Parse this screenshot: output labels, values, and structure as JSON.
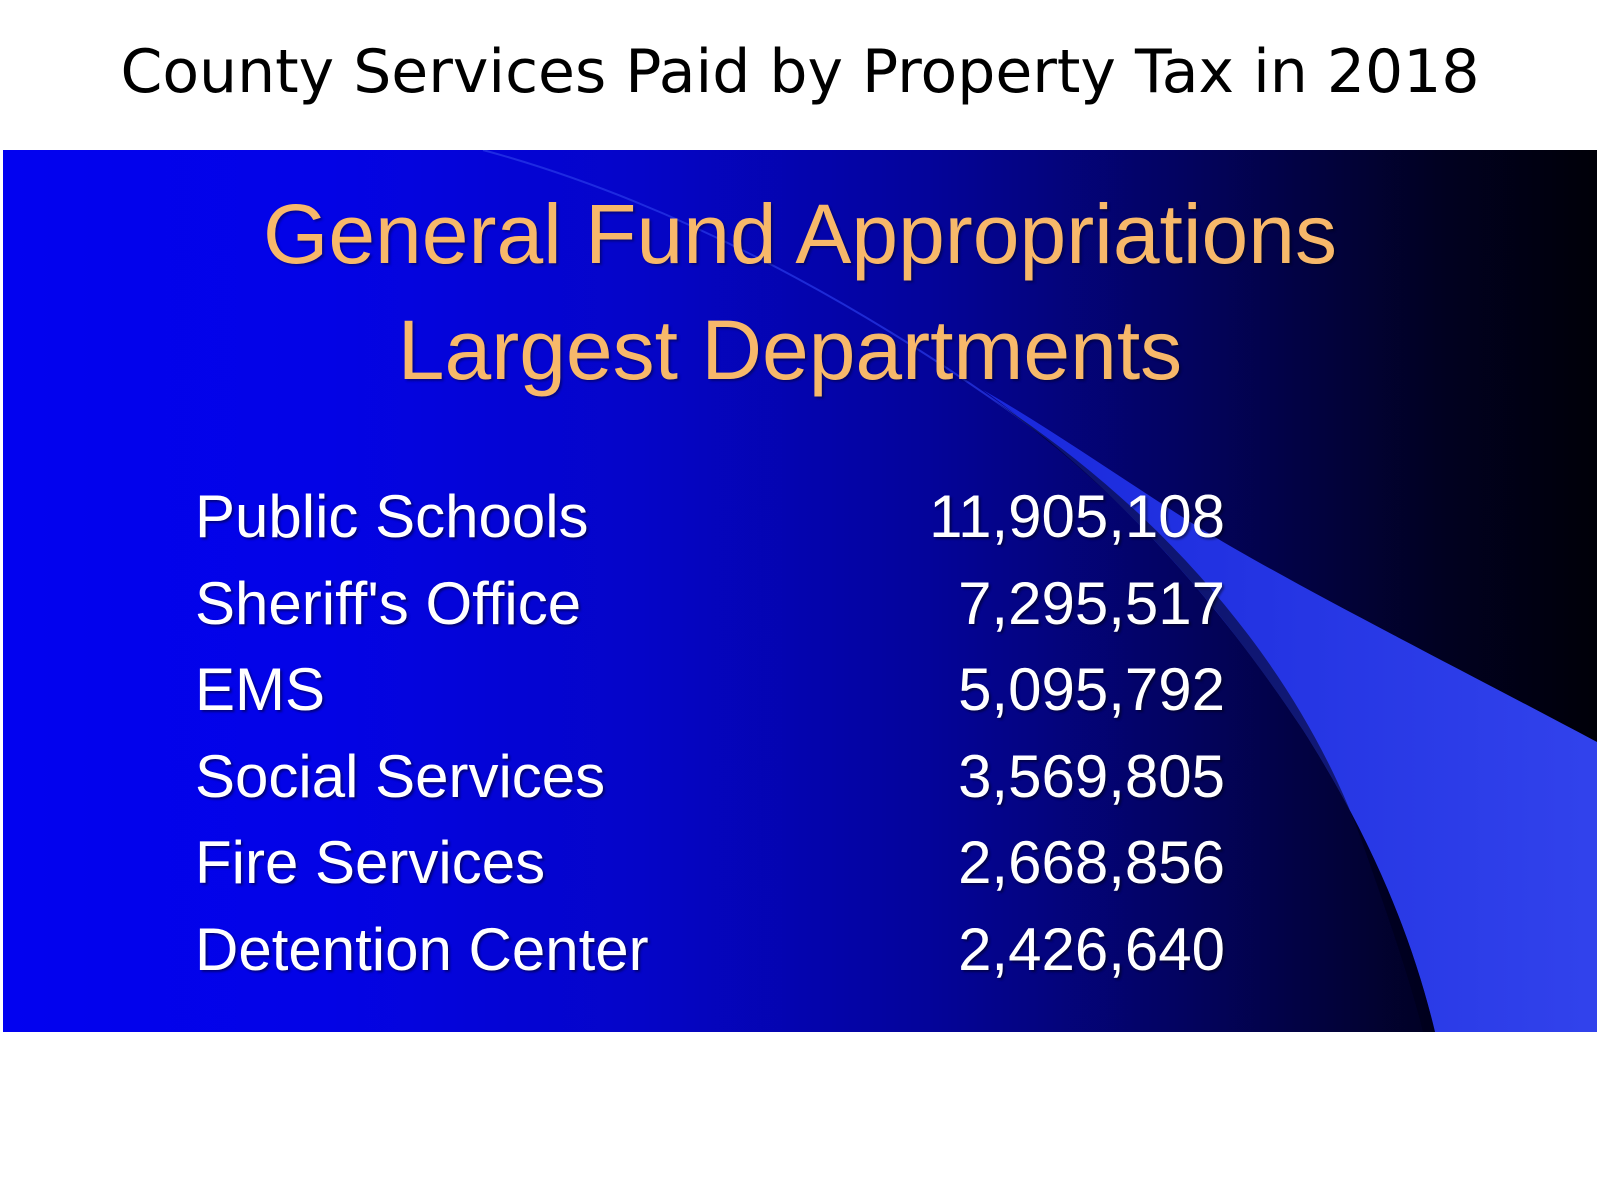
{
  "page": {
    "title": "County Services Paid by Property Tax in 2018"
  },
  "slide": {
    "heading_line1": "General Fund Appropriations",
    "heading_line2": "Largest Departments",
    "departments": [
      {
        "name": "Public Schools",
        "amount": "11,905,108"
      },
      {
        "name": "Sheriff's Office",
        "amount": "7,295,517"
      },
      {
        "name": "EMS",
        "amount": "5,095,792"
      },
      {
        "name": "Social Services",
        "amount": "3,569,805"
      },
      {
        "name": "Fire Services",
        "amount": "2,668,856"
      },
      {
        "name": "Detention Center",
        "amount": "2,426,640"
      }
    ]
  },
  "colors": {
    "heading": "#f7b86a",
    "body_text": "#ffffff",
    "slide_blue": "#0202f0",
    "swoosh_blue": "#2a3cf0"
  }
}
